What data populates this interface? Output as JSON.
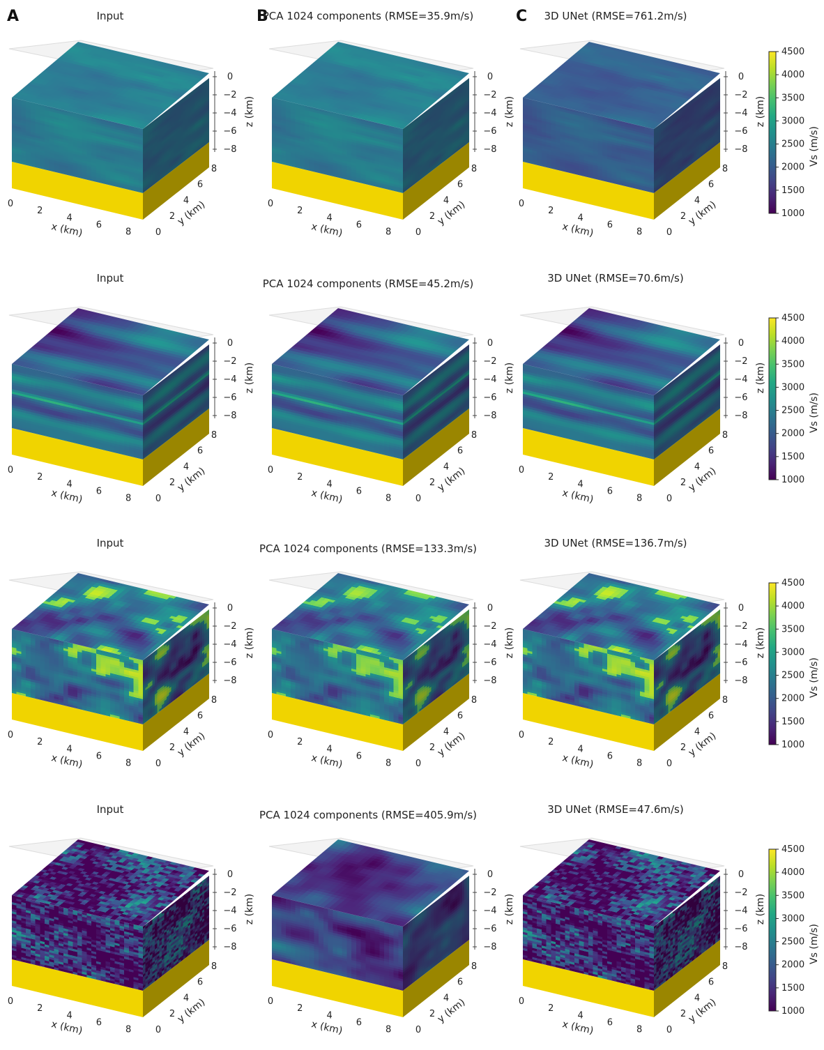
{
  "figure": {
    "panel_letters": [
      "A",
      "B",
      "C"
    ]
  },
  "chart_data": [
    {
      "type": "heatmap",
      "panel": "A",
      "row": 1,
      "title": "Input",
      "field": "smooth",
      "seed": 11,
      "mean": 0.4,
      "contrast": 0.9,
      "xlabel": "x (km)",
      "ylabel": "y (km)",
      "zlabel": "z (km)",
      "xticks": [
        "0",
        "2",
        "4",
        "6",
        "8"
      ],
      "yticks": [
        "0",
        "2",
        "4",
        "6",
        "8"
      ],
      "zticks": [
        "0",
        "−2",
        "−4",
        "−6",
        "−8"
      ]
    },
    {
      "type": "heatmap",
      "panel": "B",
      "row": 1,
      "title": "PCA 1024 components (RMSE=35.9m/s)",
      "field": "smooth",
      "seed": 11,
      "mean": 0.4,
      "contrast": 0.9,
      "xlabel": "x (km)",
      "ylabel": "y (km)",
      "zlabel": "z (km)",
      "xticks": [
        "0",
        "2",
        "4",
        "6",
        "8"
      ],
      "yticks": [
        "0",
        "2",
        "4",
        "6",
        "8"
      ],
      "zticks": [
        "0",
        "−2",
        "−4",
        "−6",
        "−8"
      ]
    },
    {
      "type": "heatmap",
      "panel": "C",
      "row": 1,
      "title": "3D UNet (RMSE=761.2m/s)",
      "field": "smooth",
      "seed": 11,
      "mean": 0.27,
      "contrast": 0.9,
      "xlabel": "x (km)",
      "ylabel": "y (km)",
      "zlabel": "z (km)",
      "xticks": [
        "0",
        "2",
        "4",
        "6",
        "8"
      ],
      "yticks": [
        "0",
        "2",
        "4",
        "6",
        "8"
      ],
      "zticks": [
        "0",
        "−2",
        "−4",
        "−6",
        "−8"
      ]
    },
    {
      "type": "heatmap",
      "panel": "A",
      "row": 2,
      "title": "Input",
      "field": "layered",
      "seed": 23,
      "mean": 0.34,
      "contrast": 1.0,
      "xlabel": "x (km)",
      "ylabel": "y (km)",
      "zlabel": "z (km)",
      "xticks": [
        "0",
        "2",
        "4",
        "6",
        "8"
      ],
      "yticks": [
        "0",
        "2",
        "4",
        "6",
        "8"
      ],
      "zticks": [
        "0",
        "−2",
        "−4",
        "−6",
        "−8"
      ]
    },
    {
      "type": "heatmap",
      "panel": "B",
      "row": 2,
      "title": "PCA 1024 components (RMSE=45.2m/s)",
      "field": "layered",
      "seed": 23,
      "mean": 0.34,
      "contrast": 1.0,
      "xlabel": "x (km)",
      "ylabel": "y (km)",
      "zlabel": "z (km)",
      "xticks": [
        "0",
        "2",
        "4",
        "6",
        "8"
      ],
      "yticks": [
        "0",
        "2",
        "4",
        "6",
        "8"
      ],
      "zticks": [
        "0",
        "−2",
        "−4",
        "−6",
        "−8"
      ]
    },
    {
      "type": "heatmap",
      "panel": "C",
      "row": 2,
      "title": "3D UNet (RMSE=70.6m/s)",
      "field": "layered",
      "seed": 23,
      "mean": 0.34,
      "contrast": 1.0,
      "xlabel": "x (km)",
      "ylabel": "y (km)",
      "zlabel": "z (km)",
      "xticks": [
        "0",
        "2",
        "4",
        "6",
        "8"
      ],
      "yticks": [
        "0",
        "2",
        "4",
        "6",
        "8"
      ],
      "zticks": [
        "0",
        "−2",
        "−4",
        "−6",
        "−8"
      ]
    },
    {
      "type": "heatmap",
      "panel": "A",
      "row": 3,
      "title": "Input",
      "field": "blobby",
      "seed": 37,
      "mean": 0.38,
      "contrast": 1.0,
      "xlabel": "x (km)",
      "ylabel": "y (km)",
      "zlabel": "z (km)",
      "xticks": [
        "0",
        "2",
        "4",
        "6",
        "8"
      ],
      "yticks": [
        "0",
        "2",
        "4",
        "6",
        "8"
      ],
      "zticks": [
        "0",
        "−2",
        "−4",
        "−6",
        "−8"
      ]
    },
    {
      "type": "heatmap",
      "panel": "B",
      "row": 3,
      "title": "PCA 1024 components (RMSE=133.3m/s)",
      "field": "blobby",
      "seed": 37,
      "mean": 0.38,
      "contrast": 0.9,
      "xlabel": "x (km)",
      "ylabel": "y (km)",
      "zlabel": "z (km)",
      "xticks": [
        "0",
        "2",
        "4",
        "6",
        "8"
      ],
      "yticks": [
        "0",
        "2",
        "4",
        "6",
        "8"
      ],
      "zticks": [
        "0",
        "−2",
        "−4",
        "−6",
        "−8"
      ]
    },
    {
      "type": "heatmap",
      "panel": "C",
      "row": 3,
      "title": "3D UNet (RMSE=136.7m/s)",
      "field": "blobby",
      "seed": 37,
      "mean": 0.38,
      "contrast": 1.0,
      "xlabel": "x (km)",
      "ylabel": "y (km)",
      "zlabel": "z (km)",
      "xticks": [
        "0",
        "2",
        "4",
        "6",
        "8"
      ],
      "yticks": [
        "0",
        "2",
        "4",
        "6",
        "8"
      ],
      "zticks": [
        "0",
        "−2",
        "−4",
        "−6",
        "−8"
      ]
    },
    {
      "type": "heatmap",
      "panel": "A",
      "row": 4,
      "title": "Input",
      "field": "noisy",
      "seed": 53,
      "mean": 0.2,
      "contrast": 1.2,
      "xlabel": "x (km)",
      "ylabel": "y (km)",
      "zlabel": "z (km)",
      "xticks": [
        "0",
        "2",
        "4",
        "6",
        "8"
      ],
      "yticks": [
        "0",
        "2",
        "4",
        "6",
        "8"
      ],
      "zticks": [
        "0",
        "−2",
        "−4",
        "−6",
        "−8"
      ]
    },
    {
      "type": "heatmap",
      "panel": "B",
      "row": 4,
      "title": "PCA 1024 components (RMSE=405.9m/s)",
      "field": "smoothnoisy",
      "seed": 53,
      "mean": 0.18,
      "contrast": 0.9,
      "xlabel": "x (km)",
      "ylabel": "y (km)",
      "zlabel": "z (km)",
      "xticks": [
        "0",
        "2",
        "4",
        "6",
        "8"
      ],
      "yticks": [
        "0",
        "2",
        "4",
        "6",
        "8"
      ],
      "zticks": [
        "0",
        "−2",
        "−4",
        "−6",
        "−8"
      ]
    },
    {
      "type": "heatmap",
      "panel": "C",
      "row": 4,
      "title": "3D UNet (RMSE=47.6m/s)",
      "field": "noisy",
      "seed": 53,
      "mean": 0.2,
      "contrast": 1.2,
      "xlabel": "x (km)",
      "ylabel": "y (km)",
      "zlabel": "z (km)",
      "xticks": [
        "0",
        "2",
        "4",
        "6",
        "8"
      ],
      "yticks": [
        "0",
        "2",
        "4",
        "6",
        "8"
      ],
      "zticks": [
        "0",
        "−2",
        "−4",
        "−6",
        "−8"
      ]
    }
  ],
  "colorbar": {
    "label": "Vs (m/s)",
    "min": 1000,
    "max": 4500,
    "ticks": [
      "1000",
      "1500",
      "2000",
      "2500",
      "3000",
      "3500",
      "4000",
      "4500"
    ],
    "colormap": "viridis",
    "saturated_color": "#fde725"
  }
}
